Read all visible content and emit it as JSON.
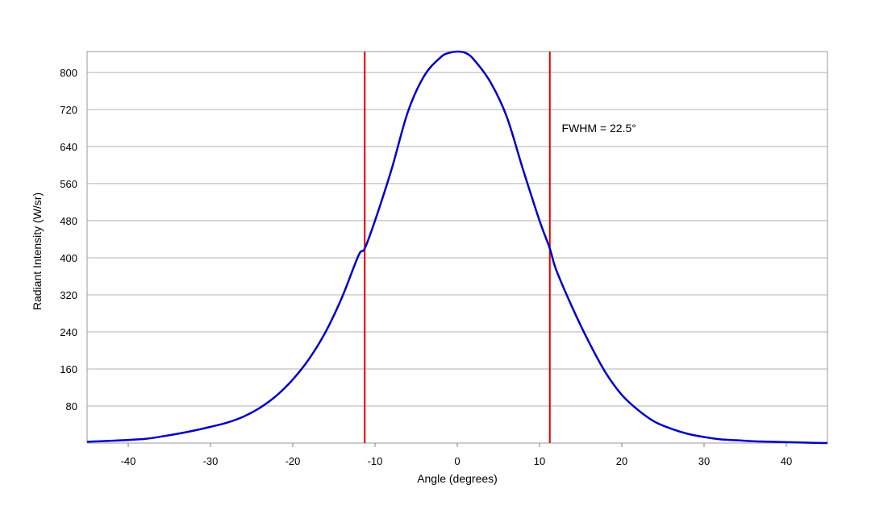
{
  "chart_data": {
    "type": "line",
    "title": "",
    "xlabel": "Angle (degrees)",
    "ylabel": "Radiant Intensity (W/sr)",
    "xlim": [
      -45,
      45
    ],
    "ylim": [
      0,
      845
    ],
    "xticks": [
      -40,
      -30,
      -20,
      -10,
      0,
      10,
      20,
      30,
      40
    ],
    "yticks": [
      80,
      160,
      240,
      320,
      400,
      480,
      560,
      640,
      720,
      800
    ],
    "grid": "horizontal",
    "series": [
      {
        "color": "#0000cc",
        "x": [
          -45,
          -42,
          -38,
          -36,
          -34,
          -32,
          -30,
          -28,
          -26,
          -24,
          -22,
          -20,
          -18,
          -16,
          -14,
          -12,
          -11.25,
          -10,
          -8,
          -6,
          -4,
          -2,
          -1,
          0,
          1,
          2,
          4,
          6,
          8,
          10,
          11.25,
          12,
          14,
          16,
          18,
          20,
          22,
          24,
          26,
          28,
          30,
          32,
          34,
          36,
          38,
          40,
          42,
          45
        ],
        "y": [
          3,
          5,
          9,
          14,
          20,
          27,
          35,
          44,
          57,
          76,
          102,
          137,
          182,
          240,
          315,
          405,
          420,
          480,
          590,
          715,
          793,
          833,
          842,
          845,
          842,
          828,
          780,
          705,
          590,
          480,
          420,
          375,
          292,
          218,
          153,
          104,
          71,
          46,
          31,
          20,
          13,
          8,
          6,
          4,
          3,
          2,
          1,
          0
        ]
      }
    ],
    "vlines": [
      {
        "x": -11.25,
        "color": "#dd0000"
      },
      {
        "x": 11.25,
        "color": "#dd0000"
      }
    ],
    "annotations": [
      {
        "text": "FWHM = 22.5°",
        "x": 12.7,
        "y": 680
      }
    ]
  }
}
